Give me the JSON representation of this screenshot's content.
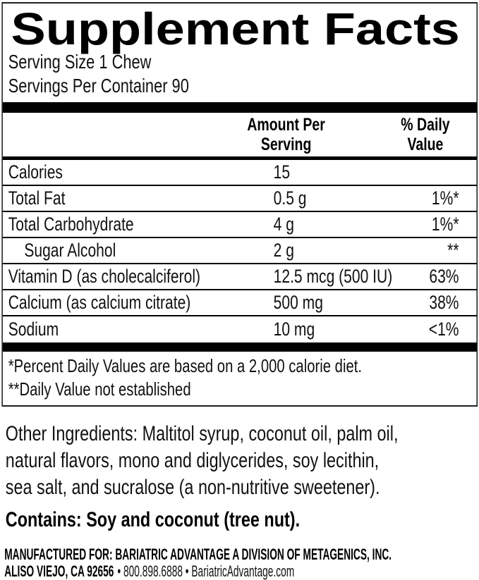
{
  "panel": {
    "title": "Supplement Facts",
    "serving_size": "Serving Size 1 Chew",
    "servings_per_container": "Servings Per Container 90",
    "header": {
      "amount_line1": "Amount Per",
      "amount_line2": "Serving",
      "dv_line1": "% Daily",
      "dv_line2": "Value"
    },
    "rows": [
      {
        "name": "Calories",
        "amount": "15",
        "dv": ""
      },
      {
        "name": "Total Fat",
        "amount": "0.5 g",
        "dv": "1%*"
      },
      {
        "name": "Total Carbohydrate",
        "amount": "4 g",
        "dv": "1%*"
      },
      {
        "name": "Sugar Alcohol",
        "amount": "2 g",
        "dv": "**"
      },
      {
        "name": "Vitamin D (as cholecalciferol)",
        "amount": "12.5 mcg (500 IU)",
        "dv": "63%"
      },
      {
        "name": "Calcium (as calcium citrate)",
        "amount": "500 mg",
        "dv": "38%"
      },
      {
        "name": "Sodium",
        "amount": "10 mg",
        "dv": "<1%"
      }
    ],
    "footnotes": [
      "*Percent Daily Values are based on a 2,000 calorie diet.",
      "**Daily Value not established"
    ]
  },
  "other_ingredients": {
    "lines": [
      "Other Ingredients: Maltitol syrup, coconut oil, palm oil,",
      "natural flavors, mono and diglycerides, soy lecithin,",
      "sea salt, and sucralose (a non-nutritive sweetener)."
    ]
  },
  "contains": "Contains: Soy and coconut (tree nut).",
  "manufacturer": {
    "line1": "MANUFACTURED FOR: BARIATRIC ADVANTAGE A DIVISION OF METAGENICS, INC.",
    "line2_bold": "ALISO VIEJO, CA 92656",
    "line2_rest": "• 800.898.6888 • BariatricAdvantage.com"
  },
  "colors": {
    "text": "#000000",
    "background": "#ffffff",
    "rule": "#000000"
  }
}
